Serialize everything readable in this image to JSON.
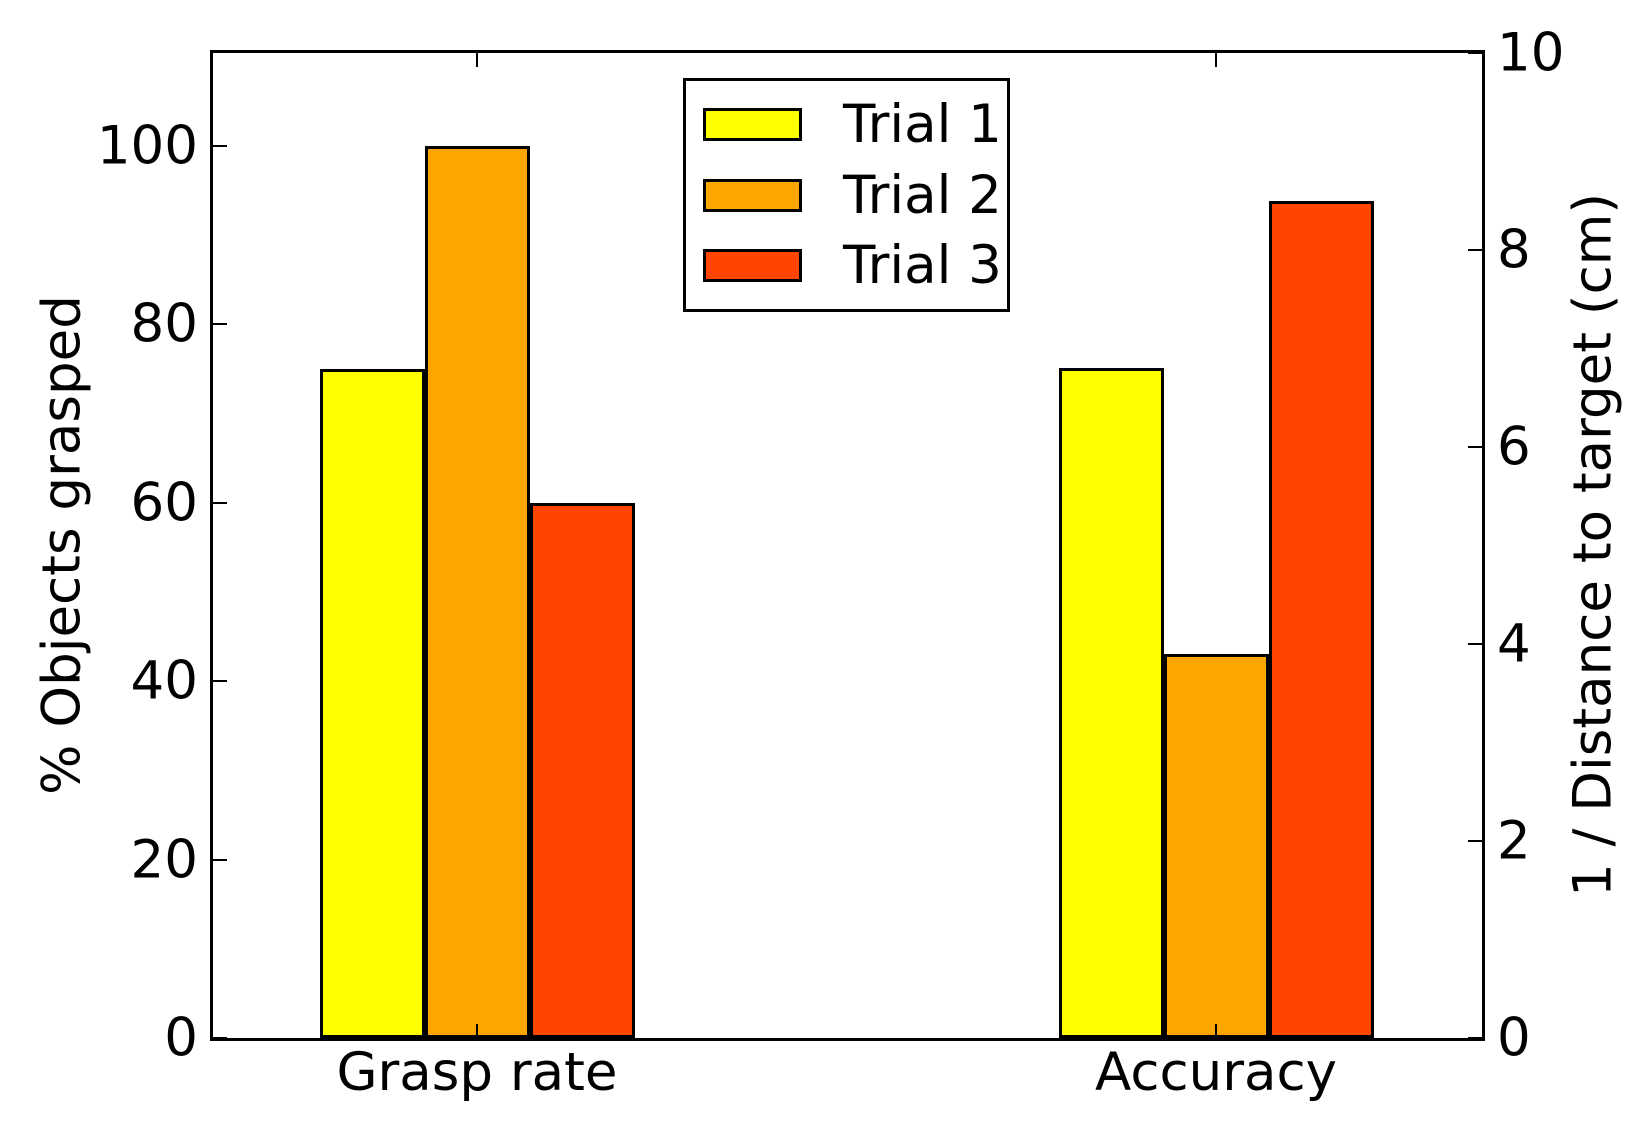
{
  "chart_data": {
    "type": "bar",
    "subtype": "grouped-dual-axis",
    "categories": [
      "Grasp rate",
      "Accuracy"
    ],
    "category_axis": [
      "left",
      "right"
    ],
    "series": [
      {
        "name": "Trial 1",
        "color": "#ffff00",
        "values": [
          75,
          6.8
        ]
      },
      {
        "name": "Trial 2",
        "color": "#ffa500",
        "values": [
          100,
          3.9
        ]
      },
      {
        "name": "Trial 3",
        "color": "#ff4500",
        "values": [
          60,
          8.5
        ]
      }
    ],
    "left_axis": {
      "label": "% Objects grasped",
      "ticks": [
        0,
        20,
        40,
        60,
        80,
        100
      ],
      "range": [
        0,
        110.4
      ]
    },
    "right_axis": {
      "label": "1 / Distance to target (cm)",
      "ticks": [
        0,
        2,
        4,
        6,
        8,
        10
      ],
      "range": [
        0,
        10
      ]
    },
    "legend": {
      "position": "upper center",
      "entries": [
        "Trial 1",
        "Trial 2",
        "Trial 3"
      ]
    },
    "grid": "off",
    "bar_edge_color": "#000000",
    "background_color": "#ffffff",
    "text_color": "#000000"
  }
}
